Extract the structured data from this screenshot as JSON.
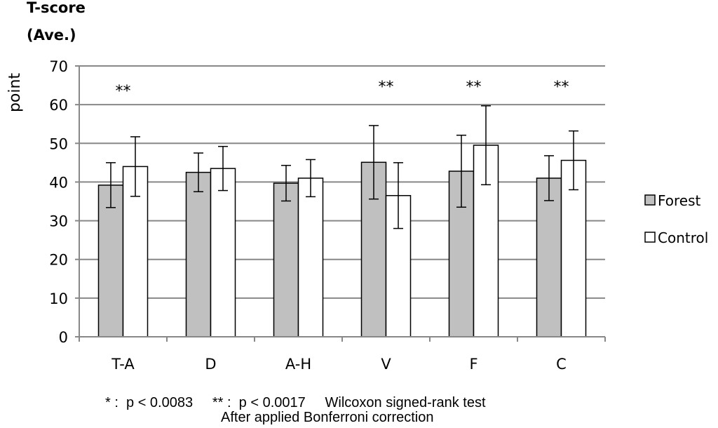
{
  "chart_data": {
    "type": "bar",
    "title_lines": [
      "T-score",
      "(Ave.)"
    ],
    "ylabel": "point",
    "xlabel": "",
    "ylim": [
      0,
      70
    ],
    "yticks": [
      0,
      10,
      20,
      30,
      40,
      50,
      60,
      70
    ],
    "grid": true,
    "legend_position": "right",
    "categories": [
      "T-A",
      "D",
      "A-H",
      "V",
      "F",
      "C"
    ],
    "series": [
      {
        "name": "Forest",
        "color": "#c0c0c0",
        "values": [
          39.2,
          42.5,
          39.7,
          45.1,
          42.8,
          41.0
        ],
        "errors": [
          5.8,
          5.0,
          4.6,
          9.5,
          9.3,
          5.8
        ]
      },
      {
        "name": "Control",
        "color": "#ffffff",
        "values": [
          44.0,
          43.5,
          41.0,
          36.5,
          49.5,
          45.6
        ],
        "errors": [
          7.7,
          5.7,
          4.8,
          8.5,
          10.2,
          7.6
        ]
      }
    ],
    "significance": [
      "**",
      "",
      "",
      "**",
      "**",
      "**"
    ],
    "footnote_lines": [
      "* :  p < 0.0083     ** :  p < 0.0017     Wilcoxon signed-rank test",
      "After applied Bonferroni correction"
    ]
  }
}
